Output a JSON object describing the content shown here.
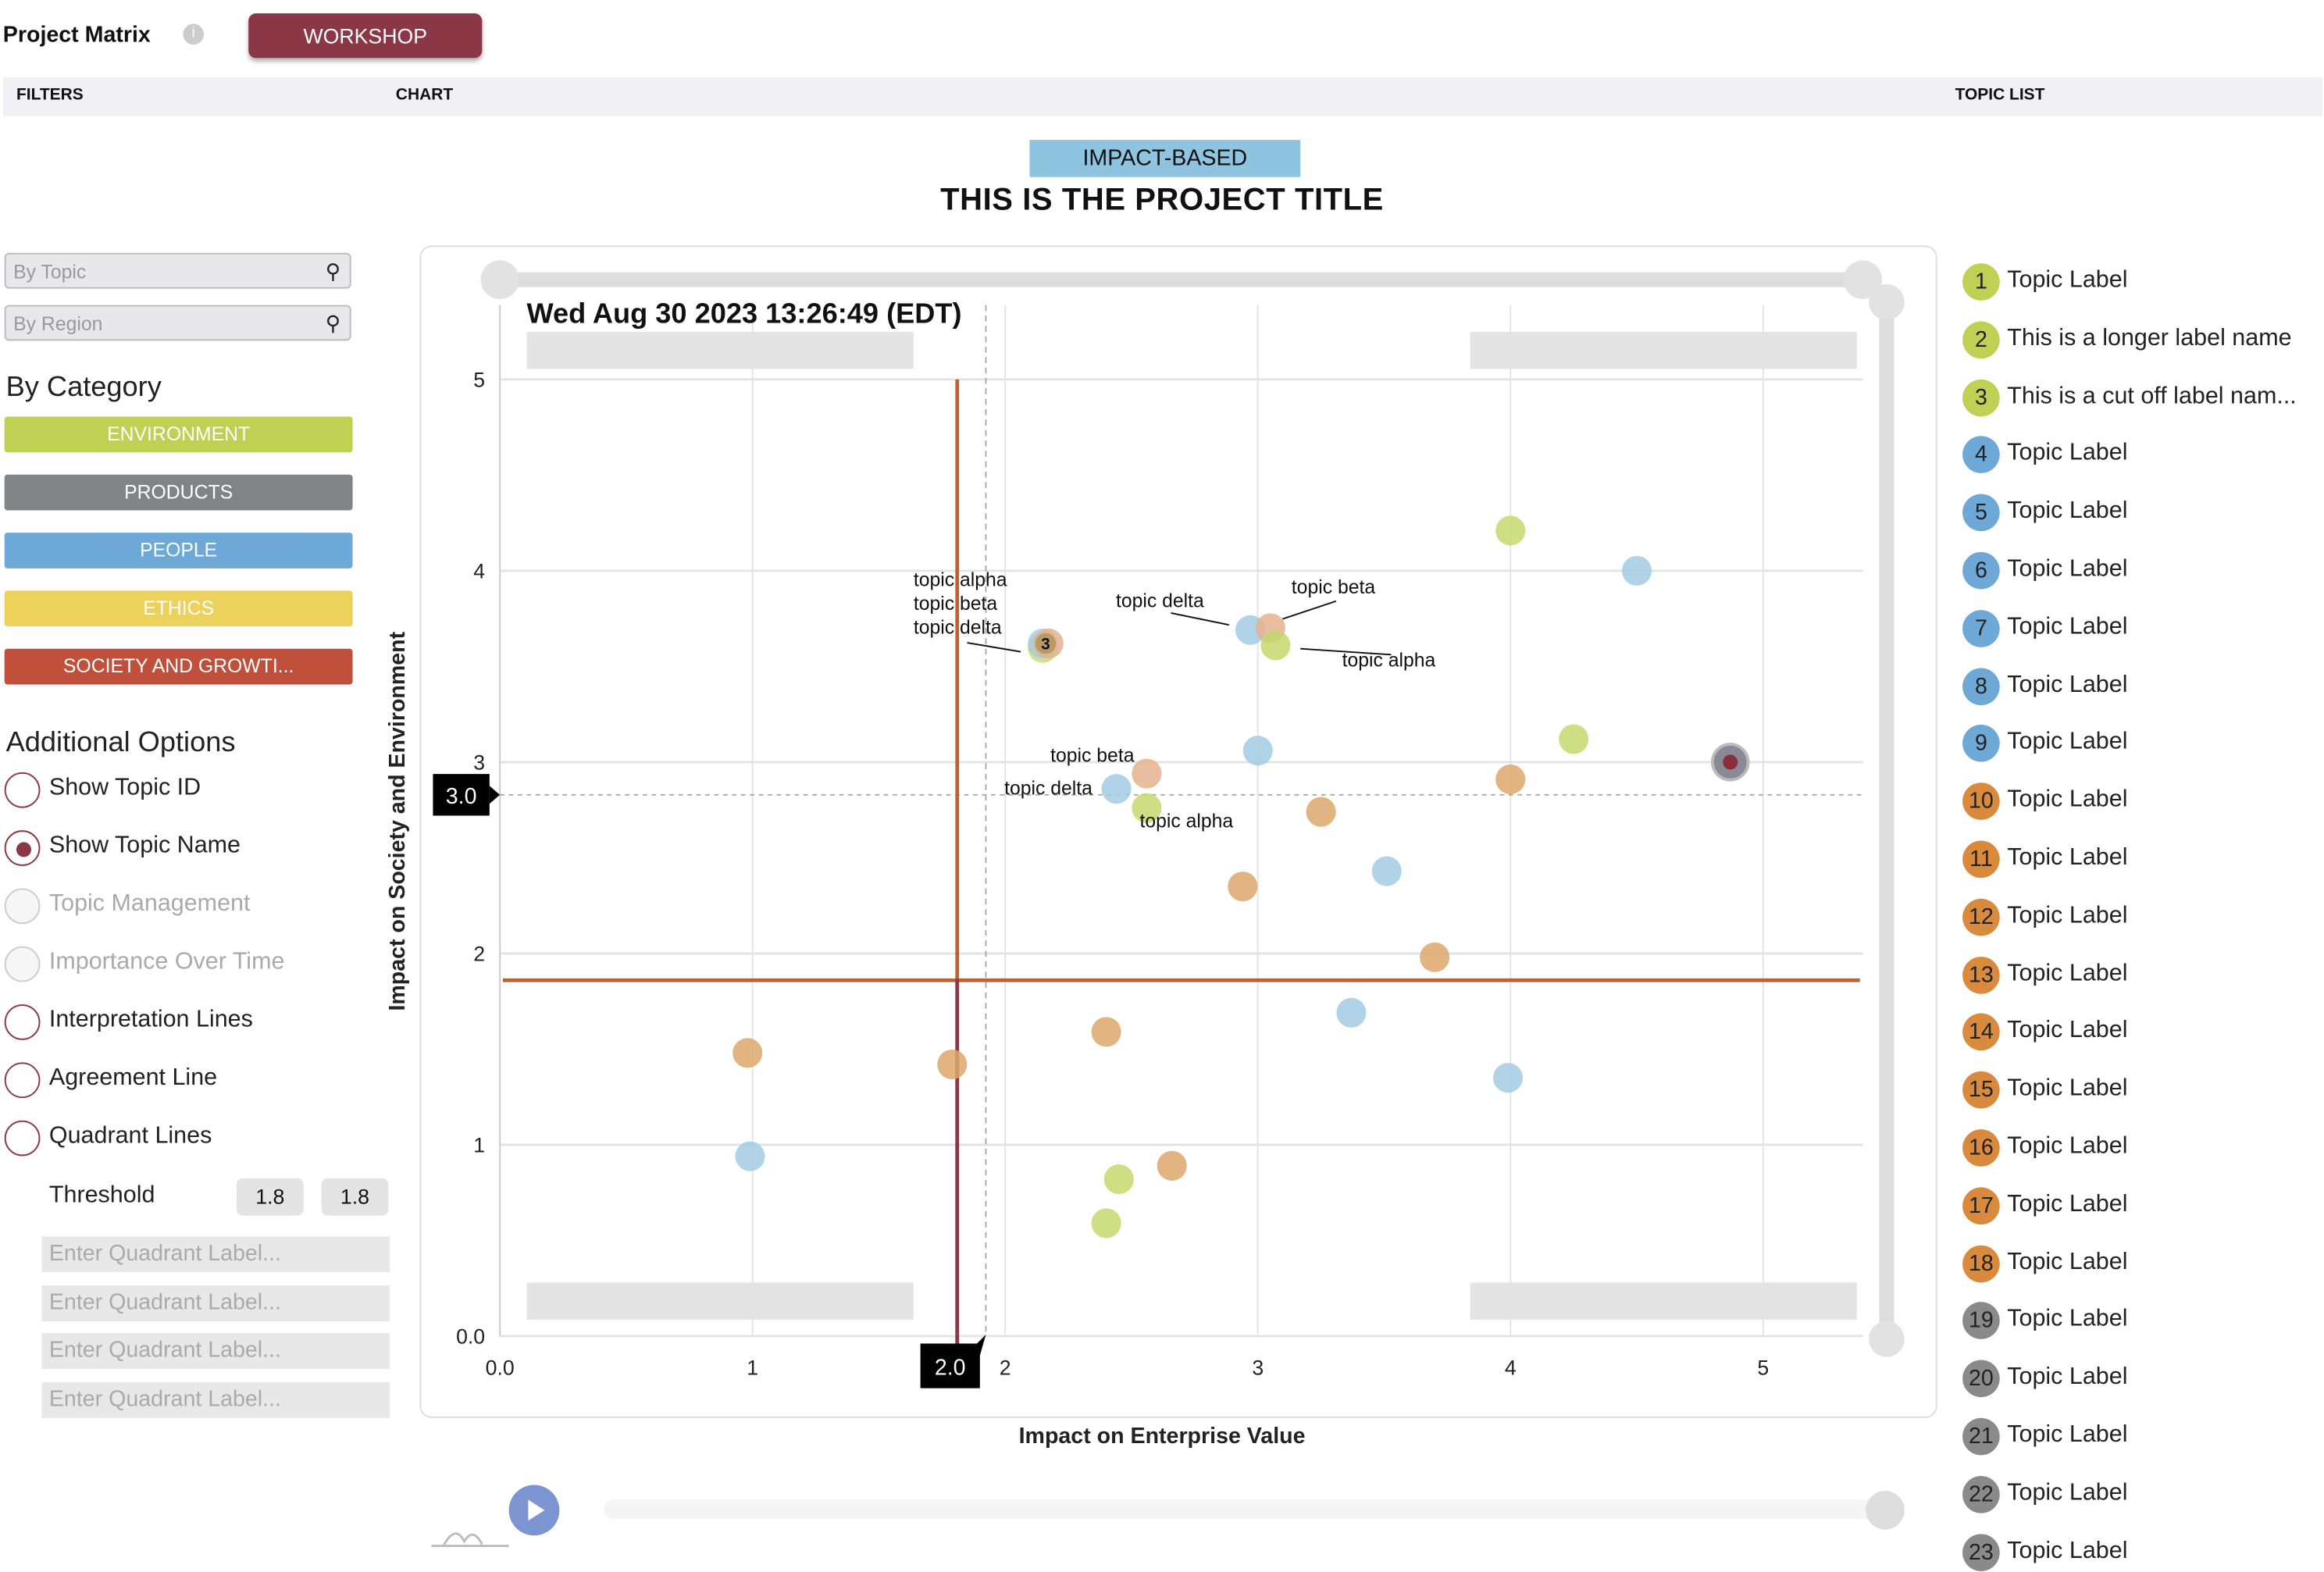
{
  "header": {
    "title": "Project Matrix",
    "info_icon": "info-icon",
    "workshop_button": "WORKSHOP"
  },
  "tabs": {
    "filters": "FILTERS",
    "chart": "CHART",
    "topic_list": "TOPIC LIST"
  },
  "filters": {
    "search_topic_placeholder": "By Topic",
    "search_region_placeholder": "By Region",
    "by_category_heading": "By Category",
    "categories": [
      {
        "label": "ENVIRONMENT",
        "color": "#bfd055"
      },
      {
        "label": "PRODUCTS",
        "color": "#828387"
      },
      {
        "label": "PEOPLE",
        "color": "#6ea8d6"
      },
      {
        "label": "ETHICS",
        "color": "#ecd25a"
      },
      {
        "label": "SOCIETY AND GROWTI...",
        "color": "#c0503b"
      }
    ],
    "additional_options_heading": "Additional Options",
    "options": [
      {
        "label": "Show Topic ID",
        "checked": false,
        "disabled": false
      },
      {
        "label": "Show Topic Name",
        "checked": true,
        "disabled": false
      },
      {
        "label": "Topic Management",
        "checked": false,
        "disabled": true
      },
      {
        "label": "Importance Over Time",
        "checked": false,
        "disabled": true
      },
      {
        "label": "Interpretation Lines",
        "checked": false,
        "disabled": false
      },
      {
        "label": "Agreement Line",
        "checked": false,
        "disabled": false
      },
      {
        "label": "Quadrant Lines",
        "checked": false,
        "disabled": false
      }
    ],
    "threshold_label": "Threshold",
    "threshold_x": "1.8",
    "threshold_y": "1.8",
    "quadrant_placeholders": [
      "Enter Quadrant Label...",
      "Enter Quadrant Label...",
      "Enter Quadrant Label...",
      "Enter Quadrant Label..."
    ]
  },
  "chart_header": {
    "mode_banner": "IMPACT-BASED",
    "project_title": "THIS IS THE PROJECT TITLE"
  },
  "chart_data": {
    "type": "scatter",
    "timestamp": "Wed Aug 30 2023 13:26:49 (EDT)",
    "xlabel": "Impact on Enterprise Value",
    "ylabel": "Impact on Society and Environment",
    "xlim": [
      0,
      5.4
    ],
    "ylim": [
      0,
      5.3
    ],
    "xticks": [
      "0.0",
      "1",
      "2",
      "3",
      "4",
      "5"
    ],
    "yticks": [
      "0.0",
      "1",
      "2",
      "3",
      "4",
      "5"
    ],
    "grid": true,
    "crosshair": {
      "x": "2.0",
      "y": "3.0"
    },
    "threshold_lines": {
      "x": 1.81,
      "y": 1.86
    },
    "colors": {
      "green": "#c5d86d",
      "blue": "#a3cbe3",
      "orange": "#dda76b",
      "peach": "#e5b18f",
      "selected": "#8a8a96"
    },
    "points": [
      {
        "x": 4.0,
        "y": 4.21,
        "c": "green"
      },
      {
        "x": 4.5,
        "y": 4.0,
        "c": "blue"
      },
      {
        "x": 2.97,
        "y": 3.69,
        "c": "blue",
        "label": "topic delta"
      },
      {
        "x": 3.05,
        "y": 3.7,
        "c": "peach",
        "label": "topic beta"
      },
      {
        "x": 3.07,
        "y": 3.61,
        "c": "green",
        "label": "topic alpha"
      },
      {
        "x": 2.16,
        "y": 3.62,
        "c": "peach",
        "cluster": "3",
        "cluster_labels": [
          "topic alpha",
          "topic beta",
          "topic delta"
        ]
      },
      {
        "x": 4.25,
        "y": 3.12,
        "c": "green"
      },
      {
        "x": 3.0,
        "y": 3.06,
        "c": "blue"
      },
      {
        "x": 4.87,
        "y": 3.0,
        "c": "selected"
      },
      {
        "x": 4.0,
        "y": 2.91,
        "c": "orange"
      },
      {
        "x": 2.56,
        "y": 2.94,
        "c": "peach",
        "label": "topic beta"
      },
      {
        "x": 2.44,
        "y": 2.86,
        "c": "blue",
        "label": "topic delta"
      },
      {
        "x": 2.56,
        "y": 2.76,
        "c": "green",
        "label": "topic alpha"
      },
      {
        "x": 3.25,
        "y": 2.74,
        "c": "orange"
      },
      {
        "x": 3.51,
        "y": 2.43,
        "c": "blue"
      },
      {
        "x": 2.94,
        "y": 2.35,
        "c": "orange"
      },
      {
        "x": 3.7,
        "y": 1.98,
        "c": "orange"
      },
      {
        "x": 3.37,
        "y": 1.69,
        "c": "blue"
      },
      {
        "x": 2.4,
        "y": 1.59,
        "c": "orange"
      },
      {
        "x": 3.99,
        "y": 1.35,
        "c": "blue"
      },
      {
        "x": 0.98,
        "y": 1.48,
        "c": "orange"
      },
      {
        "x": 1.79,
        "y": 1.42,
        "c": "orange"
      },
      {
        "x": 0.99,
        "y": 0.94,
        "c": "blue"
      },
      {
        "x": 2.45,
        "y": 0.82,
        "c": "green"
      },
      {
        "x": 2.66,
        "y": 0.89,
        "c": "orange"
      },
      {
        "x": 2.4,
        "y": 0.59,
        "c": "green"
      }
    ]
  },
  "topic_list": [
    {
      "id": "1",
      "label": "Topic Label",
      "color": "#bfd055"
    },
    {
      "id": "2",
      "label": "This is a longer label name",
      "color": "#bfd055"
    },
    {
      "id": "3",
      "label": "This is a cut off label nam...",
      "color": "#bfd055"
    },
    {
      "id": "4",
      "label": "Topic Label",
      "color": "#6ea8d6"
    },
    {
      "id": "5",
      "label": "Topic Label",
      "color": "#6ea8d6"
    },
    {
      "id": "6",
      "label": "Topic Label",
      "color": "#6ea8d6"
    },
    {
      "id": "7",
      "label": "Topic Label",
      "color": "#6ea8d6"
    },
    {
      "id": "8",
      "label": "Topic Label",
      "color": "#6ea8d6"
    },
    {
      "id": "9",
      "label": "Topic Label",
      "color": "#6ea8d6"
    },
    {
      "id": "10",
      "label": "Topic Label",
      "color": "#d98a3d"
    },
    {
      "id": "11",
      "label": "Topic Label",
      "color": "#d98a3d"
    },
    {
      "id": "12",
      "label": "Topic Label",
      "color": "#d98a3d"
    },
    {
      "id": "13",
      "label": "Topic Label",
      "color": "#d98a3d"
    },
    {
      "id": "14",
      "label": "Topic Label",
      "color": "#d98a3d"
    },
    {
      "id": "15",
      "label": "Topic Label",
      "color": "#d98a3d"
    },
    {
      "id": "16",
      "label": "Topic Label",
      "color": "#d98a3d"
    },
    {
      "id": "17",
      "label": "Topic Label",
      "color": "#d98a3d"
    },
    {
      "id": "18",
      "label": "Topic Label",
      "color": "#d98a3d"
    },
    {
      "id": "19",
      "label": "Topic Label",
      "color": "#8a8a8a"
    },
    {
      "id": "20",
      "label": "Topic Label",
      "color": "#8a8a8a"
    },
    {
      "id": "21",
      "label": "Topic Label",
      "color": "#8a8a8a"
    },
    {
      "id": "22",
      "label": "Topic Label",
      "color": "#8a8a8a"
    },
    {
      "id": "23",
      "label": "Topic Label",
      "color": "#8a8a8a"
    }
  ],
  "playback": {
    "play_icon": "play-icon"
  }
}
